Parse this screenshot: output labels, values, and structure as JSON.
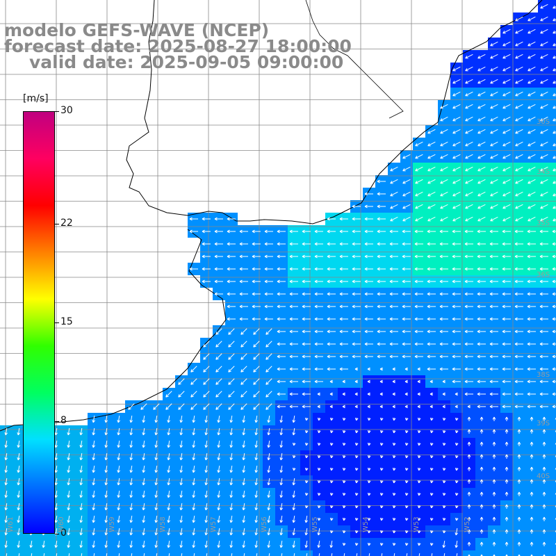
{
  "title": {
    "line1": "modelo GEFS-WAVE (NCEP)",
    "line2": "forecast date: 2025-08-27 18:00:00",
    "line3": "valid date: 2025-09-05 09:00:00"
  },
  "colorbar": {
    "unit": "[m/s]",
    "ticks": [
      "30",
      "22",
      "15",
      "8",
      "0"
    ],
    "tick_values": [
      30,
      22,
      15,
      8,
      0
    ],
    "range": [
      0,
      30
    ],
    "colors": [
      "#0000ff",
      "#0070ff",
      "#00e0ff",
      "#00ff60",
      "#30ff00",
      "#ffff00",
      "#ff8000",
      "#ff0000",
      "#ff0060",
      "#c00080"
    ]
  },
  "map": {
    "land_color": "#ffffff",
    "coastline_color": "#000000",
    "grid_color": "#888888",
    "lat_labels": [
      "30S",
      "34S",
      "35S",
      "36S",
      "38S",
      "39S",
      "40S"
    ],
    "lon_labels": [
      "W61",
      "W60",
      "W59",
      "W58",
      "W57",
      "W56",
      "W55",
      "W54",
      "W53",
      "W52"
    ],
    "colors": {
      "weak": "#0020ff",
      "medium": "#0090ff",
      "strong": "#00d8f0",
      "stronger": "#00f0c0",
      "arrow": "#ffffff"
    }
  }
}
